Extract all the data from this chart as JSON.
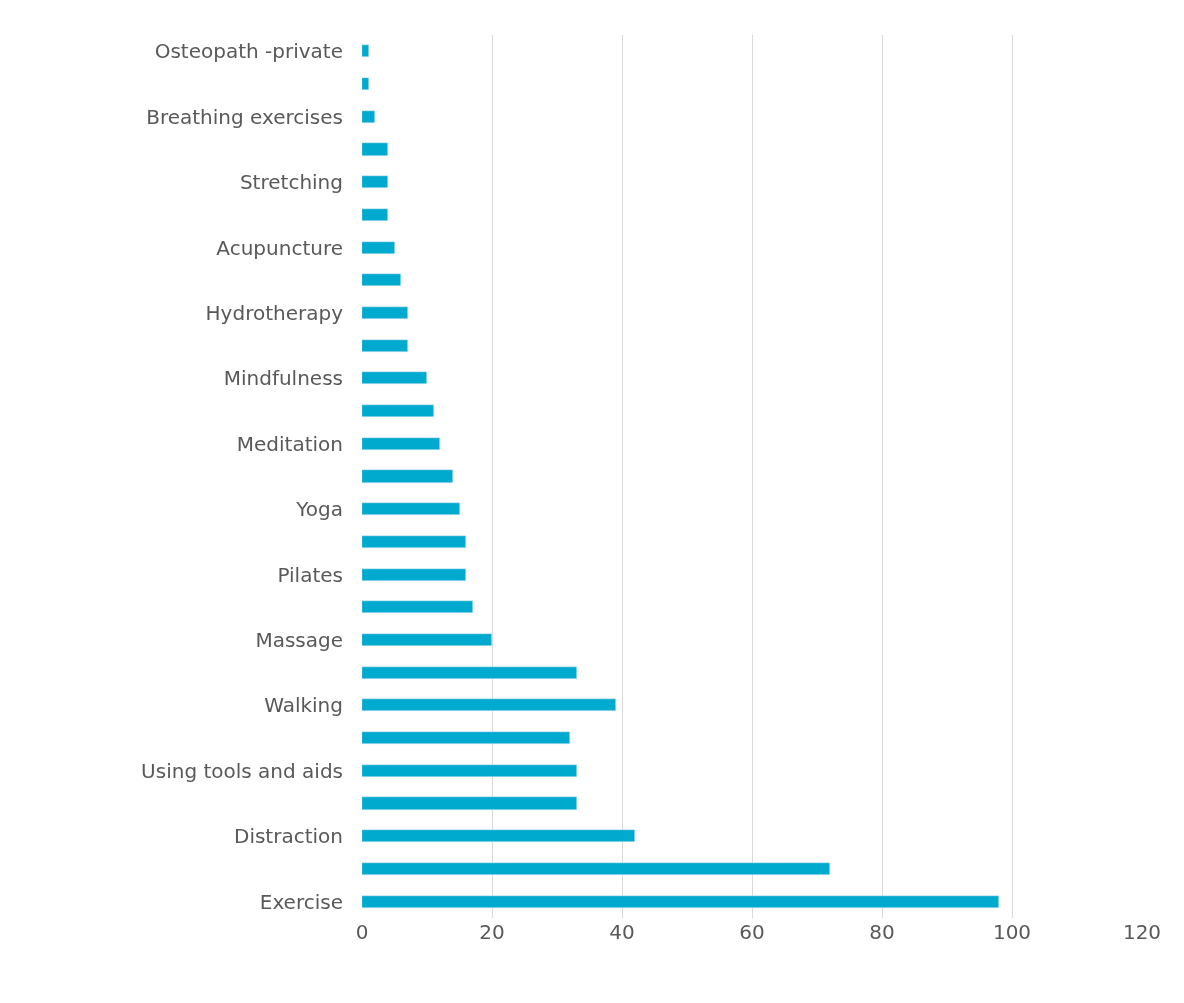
{
  "chart_data": {
    "type": "bar",
    "orientation": "horizontal",
    "categories": [
      "Osteopath -private",
      null,
      "Breathing exercises",
      null,
      "Stretching",
      null,
      "Acupuncture",
      null,
      "Hydrotherapy",
      null,
      "Mindfulness",
      null,
      "Meditation",
      null,
      "Yoga",
      null,
      "Pilates",
      null,
      "Massage",
      null,
      "Walking",
      null,
      "Using tools and aids",
      null,
      "Distraction",
      null,
      "Exercise"
    ],
    "values": [
      1,
      1,
      2,
      4,
      4,
      4,
      5,
      6,
      7,
      7,
      10,
      11,
      12,
      14,
      15,
      16,
      16,
      17,
      20,
      33,
      39,
      32,
      33,
      33,
      42,
      72,
      98
    ],
    "color": "#00a9ce",
    "xlim": [
      0,
      120
    ],
    "xticks": [
      0,
      20,
      40,
      60,
      80,
      100,
      120
    ],
    "grid": "x"
  }
}
